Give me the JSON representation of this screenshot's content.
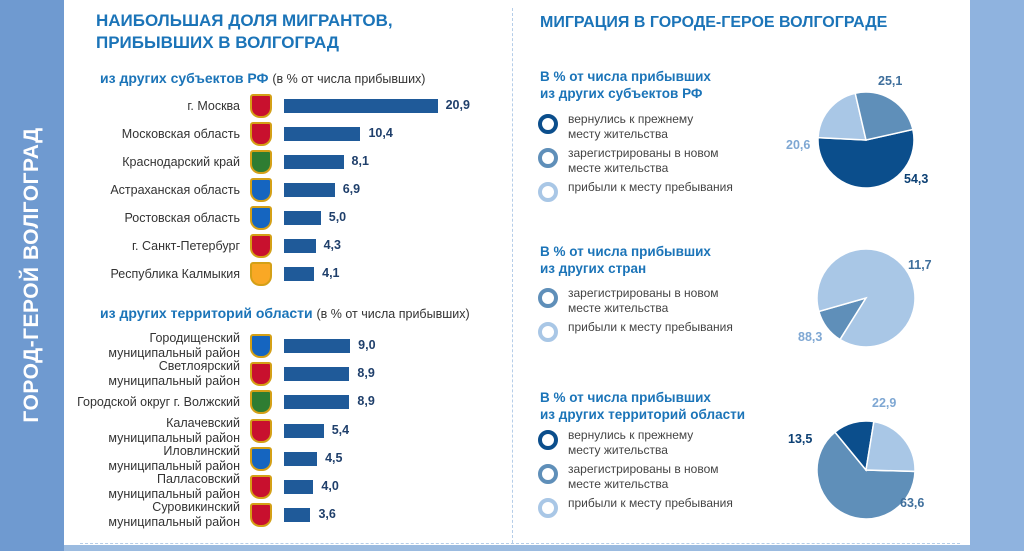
{
  "side_title": "ГОРОД-ГЕРОЙ ВОЛГОГРАД",
  "left": {
    "title_line1": "НАИБОЛЬШАЯ ДОЛЯ МИГРАНТОВ,",
    "title_line2": "ПРИБЫВШИХ В ВОЛГОГРАД",
    "sub1_bold": "из других субъектов РФ",
    "sub1_note": "(в % от числа прибывших)",
    "sub2_bold": "из других территорий  области",
    "sub2_note": "(в % от числа прибывших)"
  },
  "right": {
    "title": "МИГРАЦИЯ В ГОРОДЕ-ГЕРОЕ ВОЛГОГРАДЕ"
  },
  "colors": {
    "dark": "#0b4e8c",
    "medium": "#5f8fb9",
    "light": "#a9c7e6",
    "bar": "#1f5a99"
  },
  "chart_data": [
    {
      "type": "bar",
      "title": "из других субъектов РФ",
      "note": "(в % от числа прибывших)",
      "categories": [
        "г. Москва",
        "Московская область",
        "Краснодарский край",
        "Астраханская область",
        "Ростовская область",
        "г. Санкт-Петербург",
        "Республика Калмыкия"
      ],
      "values": [
        20.9,
        10.4,
        8.1,
        6.9,
        5.0,
        4.3,
        4.1
      ],
      "value_labels": [
        "20,9",
        "10,4",
        "8,1",
        "6,9",
        "5,0",
        "4,3",
        "4,1"
      ],
      "emblem_colors": [
        "#c8102e",
        "#c8102e",
        "#2e7d32",
        "#1565c0",
        "#1565c0",
        "#c8102e",
        "#f9a825"
      ]
    },
    {
      "type": "bar",
      "title": "из других территорий  области",
      "note": "(в % от числа прибывших)",
      "categories": [
        [
          "Городищенский",
          "муниципальный район"
        ],
        [
          "Светлоярский",
          "муниципальный район"
        ],
        [
          "Городской округ г. Волжский"
        ],
        [
          "Калачевский",
          "муниципальный район"
        ],
        [
          "Иловлинский",
          "муниципальный район"
        ],
        [
          "Палласовский",
          "муниципальный район"
        ],
        [
          "Суровикинский",
          "муниципальный район"
        ]
      ],
      "values": [
        9.0,
        8.9,
        8.9,
        5.4,
        4.5,
        4.0,
        3.6
      ],
      "value_labels": [
        "9,0",
        "8,9",
        "8,9",
        "5,4",
        "4,5",
        "4,0",
        "3,6"
      ],
      "emblem_colors": [
        "#1565c0",
        "#c8102e",
        "#2e7d32",
        "#c8102e",
        "#1565c0",
        "#c8102e",
        "#c8102e"
      ]
    },
    {
      "type": "pie",
      "title_line1": "В % от числа прибывших",
      "title_line2": "из других субъектов РФ",
      "legend": [
        {
          "label": "вернулись к прежнему|месту жительства",
          "color": "#0b4e8c"
        },
        {
          "label": "зарегистрированы в новом|месте жительства",
          "color": "#5f8fb9"
        },
        {
          "label": "прибыли к месту пребывания",
          "color": "#a9c7e6"
        }
      ],
      "slices": [
        {
          "value": 54.3,
          "label": "54,3",
          "color": "#0b4e8c"
        },
        {
          "value": 20.6,
          "label": "20,6",
          "color": "#a9c7e6"
        },
        {
          "value": 25.1,
          "label": "25,1",
          "color": "#5f8fb9"
        }
      ]
    },
    {
      "type": "pie",
      "title_line1": "В % от числа прибывших",
      "title_line2": "из других стран",
      "legend": [
        {
          "label": "зарегистрированы в новом|месте жительства",
          "color": "#5f8fb9"
        },
        {
          "label": "прибыли к месту пребывания",
          "color": "#a9c7e6"
        }
      ],
      "slices": [
        {
          "value": 11.7,
          "label": "11,7",
          "color": "#5f8fb9"
        },
        {
          "value": 88.3,
          "label": "88,3",
          "color": "#a9c7e6"
        }
      ]
    },
    {
      "type": "pie",
      "title_line1": "В % от числа прибывших",
      "title_line2": "из других территорий области",
      "legend": [
        {
          "label": "вернулись к прежнему|месту жительства",
          "color": "#0b4e8c"
        },
        {
          "label": "зарегистрированы в новом|месте жительства",
          "color": "#5f8fb9"
        },
        {
          "label": "прибыли к месту пребывания",
          "color": "#a9c7e6"
        }
      ],
      "slices": [
        {
          "value": 63.6,
          "label": "63,6",
          "color": "#5f8fb9"
        },
        {
          "value": 13.5,
          "label": "13,5",
          "color": "#0b4e8c"
        },
        {
          "value": 22.9,
          "label": "22,9",
          "color": "#a9c7e6"
        }
      ]
    }
  ]
}
